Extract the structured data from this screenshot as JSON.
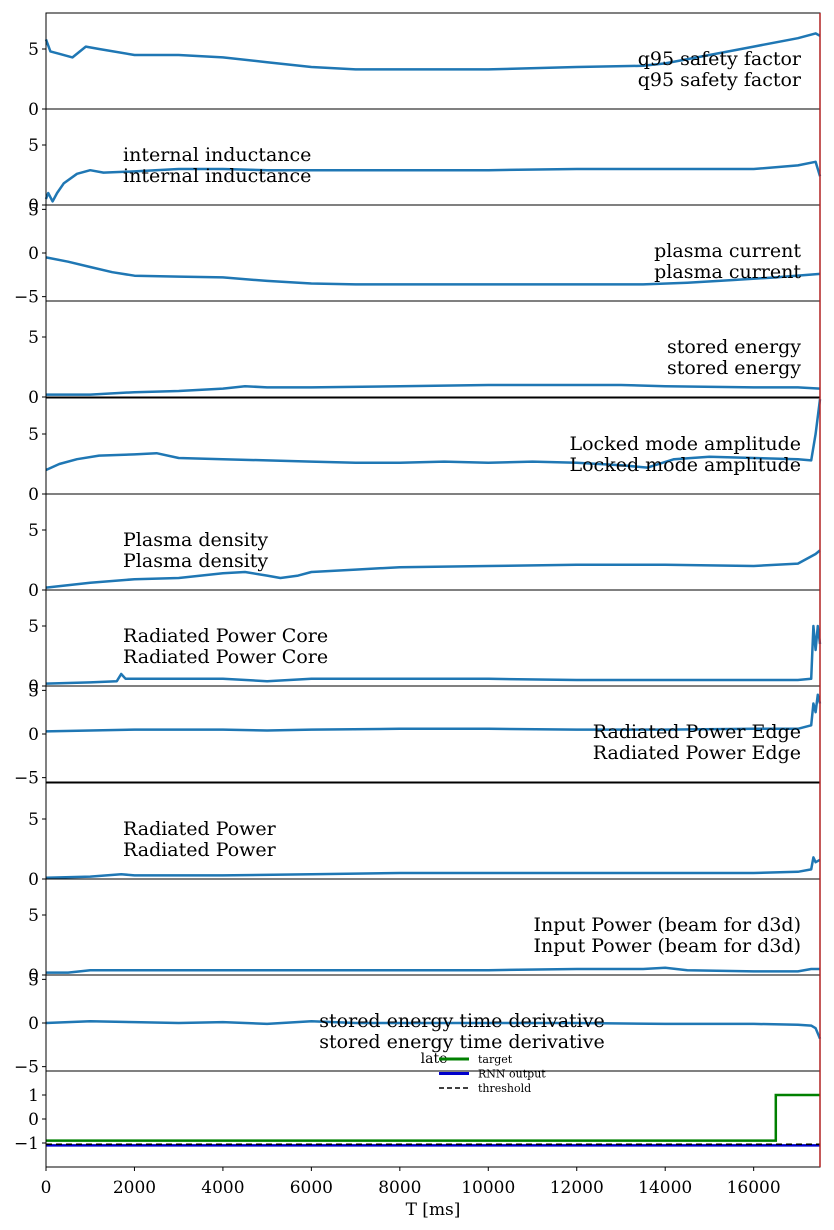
{
  "chart_data": {
    "type": "line",
    "x_range": [
      0,
      17500
    ],
    "xlabel": "T [ms]",
    "x_ticks": [
      "0",
      "2000",
      "4000",
      "6000",
      "8000",
      "10000",
      "12000",
      "14000",
      "16000"
    ],
    "x_tick_values": [
      0,
      2000,
      4000,
      6000,
      8000,
      10000,
      12000,
      14000,
      16000
    ],
    "vertical_marker": {
      "x": 17500,
      "color": "#b22222"
    },
    "series_color": "#1f77b4",
    "panels": [
      {
        "labels": [
          "q95 safety factor",
          "q95 safety factor"
        ],
        "label_align": "right",
        "ylim": [
          0,
          8
        ],
        "y_ticks": [
          "0",
          "5"
        ],
        "y_tick_values": [
          0,
          5
        ],
        "x": [
          0,
          100,
          300,
          600,
          900,
          1200,
          2000,
          3000,
          4000,
          5000,
          6000,
          7000,
          8000,
          10000,
          12000,
          13500,
          14000,
          15000,
          16000,
          17000,
          17400,
          17500
        ],
        "y": [
          5.8,
          4.8,
          4.6,
          4.3,
          5.2,
          5.0,
          4.5,
          4.5,
          4.3,
          3.9,
          3.5,
          3.3,
          3.3,
          3.3,
          3.5,
          3.6,
          3.8,
          4.5,
          5.2,
          5.9,
          6.3,
          6.1
        ]
      },
      {
        "labels": [
          "internal inductance",
          "internal inductance"
        ],
        "label_align": "left",
        "ylim": [
          0,
          8
        ],
        "y_ticks": [
          "0",
          "5"
        ],
        "y_tick_values": [
          0,
          5
        ],
        "x": [
          0,
          50,
          150,
          250,
          400,
          700,
          1000,
          1300,
          2000,
          3000,
          4000,
          5000,
          6000,
          8000,
          10000,
          12000,
          14000,
          16000,
          17000,
          17400,
          17500
        ],
        "y": [
          0.5,
          1.0,
          0.3,
          1.0,
          1.8,
          2.6,
          2.9,
          2.7,
          2.8,
          3.0,
          3.0,
          2.9,
          2.9,
          2.9,
          2.9,
          3.0,
          3.0,
          3.0,
          3.3,
          3.6,
          2.4
        ]
      },
      {
        "labels": [
          "plasma current",
          "plasma current"
        ],
        "label_align": "right",
        "ylim": [
          -5.5,
          5.5
        ],
        "y_ticks": [
          "−5",
          "0",
          "5"
        ],
        "y_tick_values": [
          -5,
          0,
          5
        ],
        "x": [
          0,
          500,
          1000,
          1500,
          2000,
          3000,
          4000,
          5000,
          6000,
          7000,
          8000,
          10000,
          12000,
          13500,
          14500,
          15500,
          16500,
          17500
        ],
        "y": [
          -0.5,
          -1.0,
          -1.6,
          -2.2,
          -2.6,
          -2.7,
          -2.8,
          -3.2,
          -3.5,
          -3.6,
          -3.6,
          -3.6,
          -3.6,
          -3.6,
          -3.4,
          -3.1,
          -2.8,
          -2.4
        ]
      },
      {
        "labels": [
          "stored energy",
          "stored energy"
        ],
        "label_align": "right",
        "ylim": [
          0,
          8
        ],
        "y_ticks": [
          "0",
          "5"
        ],
        "y_tick_values": [
          0,
          5
        ],
        "x": [
          0,
          500,
          1000,
          2000,
          3000,
          4000,
          4500,
          5000,
          6000,
          8000,
          10000,
          12000,
          13000,
          14000,
          16000,
          17000,
          17500
        ],
        "y": [
          0.2,
          0.2,
          0.2,
          0.4,
          0.5,
          0.7,
          0.9,
          0.8,
          0.8,
          0.9,
          1.0,
          1.0,
          1.0,
          0.9,
          0.8,
          0.8,
          0.7
        ]
      },
      {
        "labels": [
          "Locked mode amplitude",
          "Locked mode amplitude"
        ],
        "label_align": "right",
        "ylim": [
          0,
          8
        ],
        "y_ticks": [
          "0",
          "5"
        ],
        "y_tick_values": [
          0,
          5
        ],
        "x": [
          0,
          300,
          700,
          1200,
          2000,
          2500,
          3000,
          4000,
          5000,
          6000,
          7000,
          8000,
          9000,
          10000,
          11000,
          12000,
          13000,
          13600,
          14200,
          15000,
          16000,
          17000,
          17300,
          17400,
          17500
        ],
        "y": [
          2.0,
          2.5,
          2.9,
          3.2,
          3.3,
          3.4,
          3.0,
          2.9,
          2.8,
          2.7,
          2.6,
          2.6,
          2.7,
          2.6,
          2.7,
          2.6,
          2.4,
          2.2,
          2.9,
          3.1,
          3.0,
          2.9,
          2.8,
          5.0,
          7.9
        ]
      },
      {
        "labels": [
          "Plasma density",
          "Plasma density"
        ],
        "label_align": "left",
        "ylim": [
          0,
          8
        ],
        "y_ticks": [
          "0",
          "5"
        ],
        "y_tick_values": [
          0,
          5
        ],
        "x": [
          0,
          1000,
          2000,
          3000,
          4000,
          4500,
          5000,
          5300,
          5700,
          6000,
          7000,
          8000,
          10000,
          12000,
          13000,
          14000,
          16000,
          17000,
          17400,
          17500
        ],
        "y": [
          0.2,
          0.6,
          0.9,
          1.0,
          1.4,
          1.5,
          1.2,
          1.0,
          1.2,
          1.5,
          1.7,
          1.9,
          2.0,
          2.1,
          2.1,
          2.1,
          2.0,
          2.2,
          3.0,
          3.3
        ]
      },
      {
        "labels": [
          "Radiated Power Core",
          "Radiated Power Core"
        ],
        "label_align": "left",
        "ylim": [
          0,
          8
        ],
        "y_ticks": [
          "0",
          "5"
        ],
        "y_tick_values": [
          0,
          5
        ],
        "x": [
          0,
          1000,
          1600,
          1700,
          1800,
          3000,
          4000,
          5000,
          6000,
          8000,
          10000,
          12000,
          14000,
          16000,
          17000,
          17300,
          17350,
          17400,
          17450,
          17500
        ],
        "y": [
          0.2,
          0.3,
          0.4,
          1.0,
          0.6,
          0.6,
          0.6,
          0.4,
          0.6,
          0.6,
          0.6,
          0.5,
          0.5,
          0.5,
          0.5,
          0.6,
          5.0,
          3.0,
          5.0,
          3.5
        ]
      },
      {
        "labels": [
          "Radiated Power Edge",
          "Radiated Power Edge"
        ],
        "label_align": "right",
        "ylim": [
          -5.5,
          5.5
        ],
        "y_ticks": [
          "−5",
          "0",
          "5"
        ],
        "y_tick_values": [
          -5,
          0,
          5
        ],
        "x": [
          0,
          1000,
          2000,
          3000,
          4000,
          5000,
          6000,
          8000,
          10000,
          12000,
          14000,
          16000,
          17000,
          17300,
          17350,
          17400,
          17450,
          17500
        ],
        "y": [
          0.3,
          0.4,
          0.5,
          0.5,
          0.5,
          0.4,
          0.5,
          0.6,
          0.6,
          0.5,
          0.5,
          0.6,
          0.6,
          1.0,
          3.5,
          2.5,
          4.5,
          3.5
        ]
      },
      {
        "labels": [
          "Radiated Power",
          "Radiated Power"
        ],
        "label_align": "left",
        "ylim": [
          0,
          8
        ],
        "y_ticks": [
          "0",
          "5"
        ],
        "y_tick_values": [
          0,
          5
        ],
        "x": [
          0,
          1000,
          1700,
          2000,
          4000,
          6000,
          8000,
          10000,
          12000,
          14000,
          16000,
          17000,
          17300,
          17350,
          17400,
          17500
        ],
        "y": [
          0.1,
          0.2,
          0.4,
          0.3,
          0.3,
          0.4,
          0.5,
          0.5,
          0.5,
          0.5,
          0.5,
          0.6,
          0.8,
          1.8,
          1.4,
          1.6
        ]
      },
      {
        "labels": [
          "Input Power (beam for d3d)",
          "Input Power (beam for d3d)"
        ],
        "label_align": "right",
        "ylim": [
          0,
          8
        ],
        "y_ticks": [
          "0",
          "5"
        ],
        "y_tick_values": [
          0,
          5
        ],
        "x": [
          0,
          500,
          1000,
          2000,
          4000,
          6000,
          8000,
          10000,
          12000,
          13500,
          14000,
          14500,
          16000,
          17000,
          17300,
          17500
        ],
        "y": [
          0.2,
          0.2,
          0.4,
          0.4,
          0.4,
          0.4,
          0.4,
          0.4,
          0.5,
          0.5,
          0.6,
          0.4,
          0.3,
          0.3,
          0.5,
          0.5
        ]
      },
      {
        "labels": [
          "stored energy time derivative",
          "stored energy time derivative"
        ],
        "label_align": "center",
        "ylim": [
          -5.5,
          5.5
        ],
        "y_ticks": [
          "−5",
          "0",
          "5"
        ],
        "y_tick_values": [
          -5,
          0,
          5
        ],
        "x": [
          0,
          1000,
          2000,
          3000,
          4000,
          5000,
          6000,
          7000,
          8000,
          10000,
          12000,
          14000,
          16000,
          17000,
          17300,
          17400,
          17500
        ],
        "y": [
          0.0,
          0.2,
          0.1,
          0.0,
          0.1,
          -0.1,
          0.2,
          0.0,
          0.0,
          0.0,
          0.0,
          -0.1,
          -0.1,
          -0.2,
          -0.3,
          -0.6,
          -1.8
        ]
      }
    ],
    "output_panel": {
      "ylim": [
        -2.0,
        2.0
      ],
      "y_ticks": [
        "−1",
        "0",
        "1"
      ],
      "y_tick_values": [
        -1,
        0,
        1
      ],
      "legend": {
        "title": "late",
        "entries": [
          {
            "label": "target",
            "color": "#008000",
            "style": "solid"
          },
          {
            "label": "RNN output",
            "color": "#0000cc",
            "style": "solid"
          },
          {
            "label": "threshold",
            "color": "#000000",
            "style": "dashed"
          }
        ]
      },
      "series": [
        {
          "name": "target",
          "x": [
            0,
            16500,
            16500,
            17500
          ],
          "y": [
            -0.9,
            -0.9,
            1.0,
            1.0
          ]
        },
        {
          "name": "RNN output",
          "x": [
            0,
            17500
          ],
          "y": [
            -1.1,
            -1.1
          ]
        },
        {
          "name": "threshold",
          "x": [
            0,
            17500
          ],
          "y": [
            -1.05,
            -1.05
          ]
        }
      ]
    }
  }
}
